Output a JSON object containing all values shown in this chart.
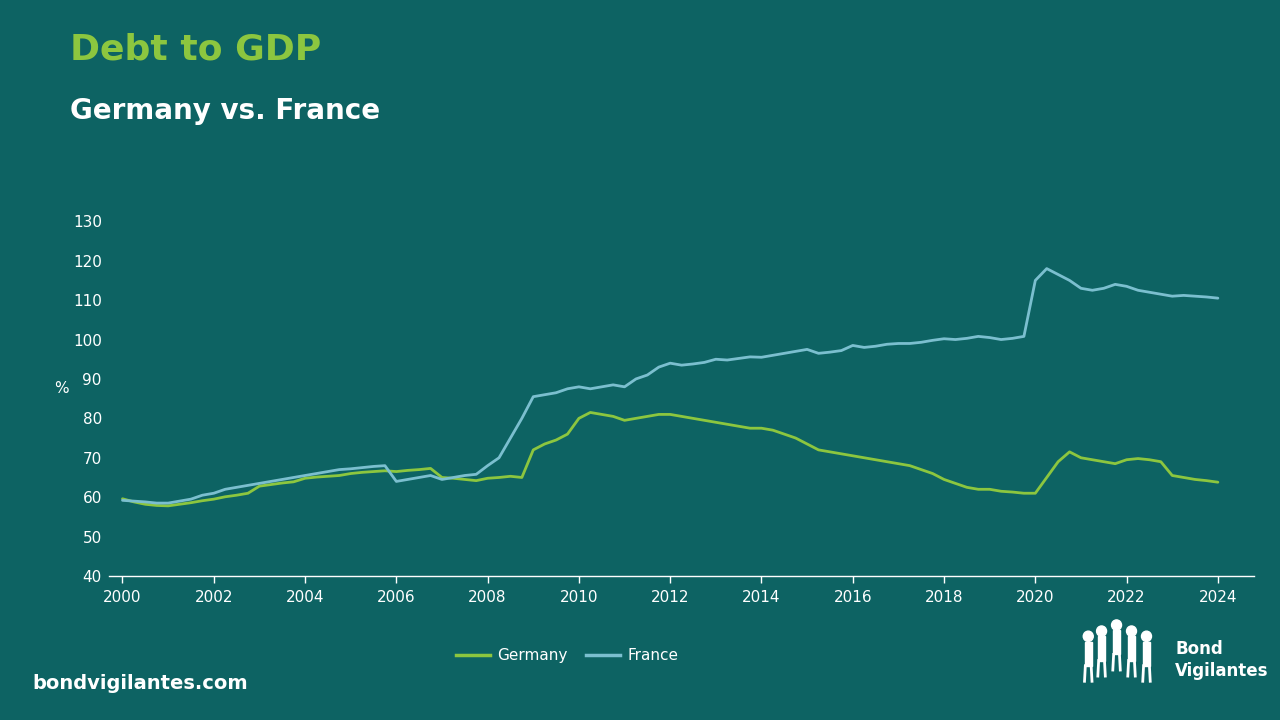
{
  "title1": "Debt to GDP",
  "title2": "Germany vs. France",
  "ylabel": "%",
  "background_color": "#0d6363",
  "title1_color": "#8cc63f",
  "title2_color": "#ffffff",
  "germany_color": "#8cc63f",
  "france_color": "#7bbfcf",
  "xlim": [
    1999.7,
    2024.8
  ],
  "ylim": [
    40,
    135
  ],
  "yticks": [
    40,
    50,
    60,
    70,
    80,
    90,
    100,
    110,
    120,
    130
  ],
  "xticks": [
    2000,
    2002,
    2004,
    2006,
    2008,
    2010,
    2012,
    2014,
    2016,
    2018,
    2020,
    2022,
    2024
  ],
  "germany_years": [
    2000.0,
    2000.25,
    2000.5,
    2000.75,
    2001.0,
    2001.25,
    2001.5,
    2001.75,
    2002.0,
    2002.25,
    2002.5,
    2002.75,
    2003.0,
    2003.25,
    2003.5,
    2003.75,
    2004.0,
    2004.25,
    2004.5,
    2004.75,
    2005.0,
    2005.25,
    2005.5,
    2005.75,
    2006.0,
    2006.25,
    2006.5,
    2006.75,
    2007.0,
    2007.25,
    2007.5,
    2007.75,
    2008.0,
    2008.25,
    2008.5,
    2008.75,
    2009.0,
    2009.25,
    2009.5,
    2009.75,
    2010.0,
    2010.25,
    2010.5,
    2010.75,
    2011.0,
    2011.25,
    2011.5,
    2011.75,
    2012.0,
    2012.25,
    2012.5,
    2012.75,
    2013.0,
    2013.25,
    2013.5,
    2013.75,
    2014.0,
    2014.25,
    2014.5,
    2014.75,
    2015.0,
    2015.25,
    2015.5,
    2015.75,
    2016.0,
    2016.25,
    2016.5,
    2016.75,
    2017.0,
    2017.25,
    2017.5,
    2017.75,
    2018.0,
    2018.25,
    2018.5,
    2018.75,
    2019.0,
    2019.25,
    2019.5,
    2019.75,
    2020.0,
    2020.25,
    2020.5,
    2020.75,
    2021.0,
    2021.25,
    2021.5,
    2021.75,
    2022.0,
    2022.25,
    2022.5,
    2022.75,
    2023.0,
    2023.25,
    2023.5,
    2023.75,
    2024.0
  ],
  "germany_values": [
    59.6,
    58.8,
    58.2,
    57.9,
    57.8,
    58.2,
    58.6,
    59.1,
    59.5,
    60.1,
    60.5,
    61.0,
    62.8,
    63.2,
    63.6,
    63.9,
    64.8,
    65.1,
    65.3,
    65.5,
    66.0,
    66.3,
    66.5,
    66.7,
    66.5,
    66.8,
    67.0,
    67.3,
    65.0,
    64.8,
    64.5,
    64.2,
    64.8,
    65.0,
    65.3,
    65.0,
    72.0,
    73.5,
    74.5,
    76.0,
    80.0,
    81.5,
    81.0,
    80.5,
    79.5,
    80.0,
    80.5,
    81.0,
    81.0,
    80.5,
    80.0,
    79.5,
    79.0,
    78.5,
    78.0,
    77.5,
    77.5,
    77.0,
    76.0,
    75.0,
    73.5,
    72.0,
    71.5,
    71.0,
    70.5,
    70.0,
    69.5,
    69.0,
    68.5,
    68.0,
    67.0,
    66.0,
    64.5,
    63.5,
    62.5,
    62.0,
    62.0,
    61.5,
    61.3,
    61.0,
    61.0,
    65.0,
    69.0,
    71.5,
    70.0,
    69.5,
    69.0,
    68.5,
    69.5,
    69.8,
    69.5,
    69.0,
    65.5,
    65.0,
    64.5,
    64.2,
    63.8
  ],
  "france_years": [
    2000.0,
    2000.25,
    2000.5,
    2000.75,
    2001.0,
    2001.25,
    2001.5,
    2001.75,
    2002.0,
    2002.25,
    2002.5,
    2002.75,
    2003.0,
    2003.25,
    2003.5,
    2003.75,
    2004.0,
    2004.25,
    2004.5,
    2004.75,
    2005.0,
    2005.25,
    2005.5,
    2005.75,
    2006.0,
    2006.25,
    2006.5,
    2006.75,
    2007.0,
    2007.25,
    2007.5,
    2007.75,
    2008.0,
    2008.25,
    2008.5,
    2008.75,
    2009.0,
    2009.25,
    2009.5,
    2009.75,
    2010.0,
    2010.25,
    2010.5,
    2010.75,
    2011.0,
    2011.25,
    2011.5,
    2011.75,
    2012.0,
    2012.25,
    2012.5,
    2012.75,
    2013.0,
    2013.25,
    2013.5,
    2013.75,
    2014.0,
    2014.25,
    2014.5,
    2014.75,
    2015.0,
    2015.25,
    2015.5,
    2015.75,
    2016.0,
    2016.25,
    2016.5,
    2016.75,
    2017.0,
    2017.25,
    2017.5,
    2017.75,
    2018.0,
    2018.25,
    2018.5,
    2018.75,
    2019.0,
    2019.25,
    2019.5,
    2019.75,
    2020.0,
    2020.25,
    2020.5,
    2020.75,
    2021.0,
    2021.25,
    2021.5,
    2021.75,
    2022.0,
    2022.25,
    2022.5,
    2022.75,
    2023.0,
    2023.25,
    2023.5,
    2023.75,
    2024.0
  ],
  "france_values": [
    59.2,
    59.0,
    58.8,
    58.5,
    58.5,
    59.0,
    59.5,
    60.5,
    61.0,
    62.0,
    62.5,
    63.0,
    63.5,
    64.0,
    64.5,
    65.0,
    65.5,
    66.0,
    66.5,
    67.0,
    67.2,
    67.5,
    67.8,
    68.0,
    64.0,
    64.5,
    65.0,
    65.5,
    64.5,
    65.0,
    65.5,
    65.8,
    68.0,
    70.0,
    75.0,
    80.0,
    85.5,
    86.0,
    86.5,
    87.5,
    88.0,
    87.5,
    88.0,
    88.5,
    88.0,
    90.0,
    91.0,
    93.0,
    94.0,
    93.5,
    93.8,
    94.2,
    95.0,
    94.8,
    95.2,
    95.6,
    95.5,
    96.0,
    96.5,
    97.0,
    97.5,
    96.5,
    96.8,
    97.2,
    98.5,
    98.0,
    98.3,
    98.8,
    99.0,
    99.0,
    99.3,
    99.8,
    100.2,
    100.0,
    100.3,
    100.8,
    100.5,
    100.0,
    100.3,
    100.8,
    115.0,
    118.0,
    116.5,
    115.0,
    113.0,
    112.5,
    113.0,
    114.0,
    113.5,
    112.5,
    112.0,
    111.5,
    111.0,
    111.2,
    111.0,
    110.8,
    110.5
  ],
  "watermark": "bondvigilantes.com",
  "legend_germany": "Germany",
  "legend_france": "France",
  "title1_fontsize": 26,
  "title2_fontsize": 20,
  "tick_fontsize": 11,
  "legend_fontsize": 11
}
